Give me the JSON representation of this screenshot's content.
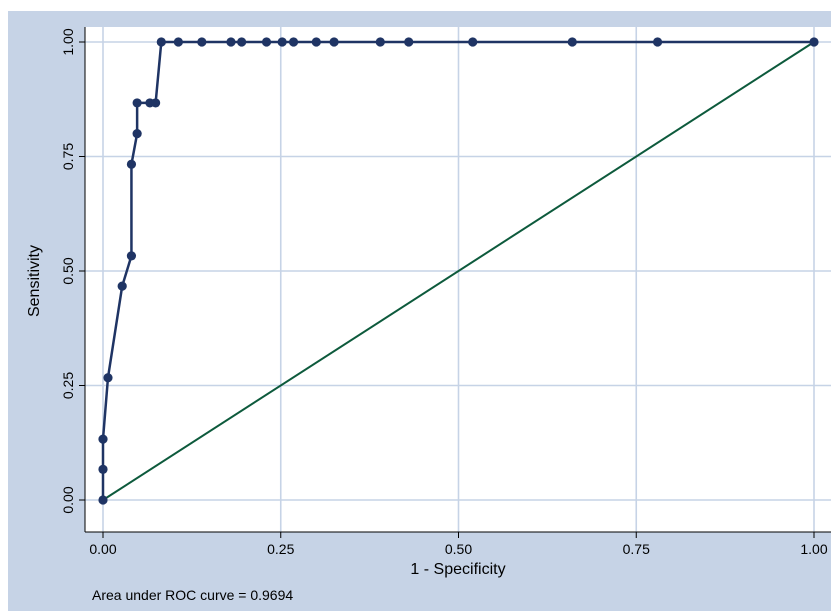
{
  "chart_data": {
    "type": "line",
    "xlabel": "1 - Specificity",
    "ylabel": "Sensitivity",
    "xlim": [
      0,
      1
    ],
    "ylim": [
      0,
      1
    ],
    "x_ticks": [
      "0.00",
      "0.25",
      "0.50",
      "0.75",
      "1.00"
    ],
    "y_ticks": [
      "0.00",
      "0.25",
      "0.50",
      "0.75",
      "1.00"
    ],
    "grid": true,
    "note": "Area under ROC curve = 0.9694",
    "colors": {
      "background": "#c6d3e6",
      "plot_area": "#ffffff",
      "grid": "#c6d3e6",
      "curve": "#1f3464",
      "reference_line": "#0d5a3c"
    },
    "series": [
      {
        "x": [
          0,
          0,
          0,
          0.007,
          0.027,
          0.04,
          0.04,
          0.048,
          0.048,
          0.066,
          0.074,
          0.082,
          0.106,
          0.139,
          0.18,
          0.195,
          0.23,
          0.252,
          0.268,
          0.3,
          0.325,
          0.39,
          0.43,
          0.52,
          0.66,
          0.78,
          1.0
        ],
        "y": [
          0,
          0.067,
          0.133,
          0.267,
          0.467,
          0.533,
          0.733,
          0.8,
          0.867,
          0.867,
          0.867,
          1.0,
          1.0,
          1.0,
          1.0,
          1.0,
          1.0,
          1.0,
          1.0,
          1.0,
          1.0,
          1.0,
          1.0,
          1.0,
          1.0,
          1.0,
          1.0
        ]
      },
      {
        "x": [
          0,
          1
        ],
        "y": [
          0,
          1
        ]
      }
    ]
  }
}
